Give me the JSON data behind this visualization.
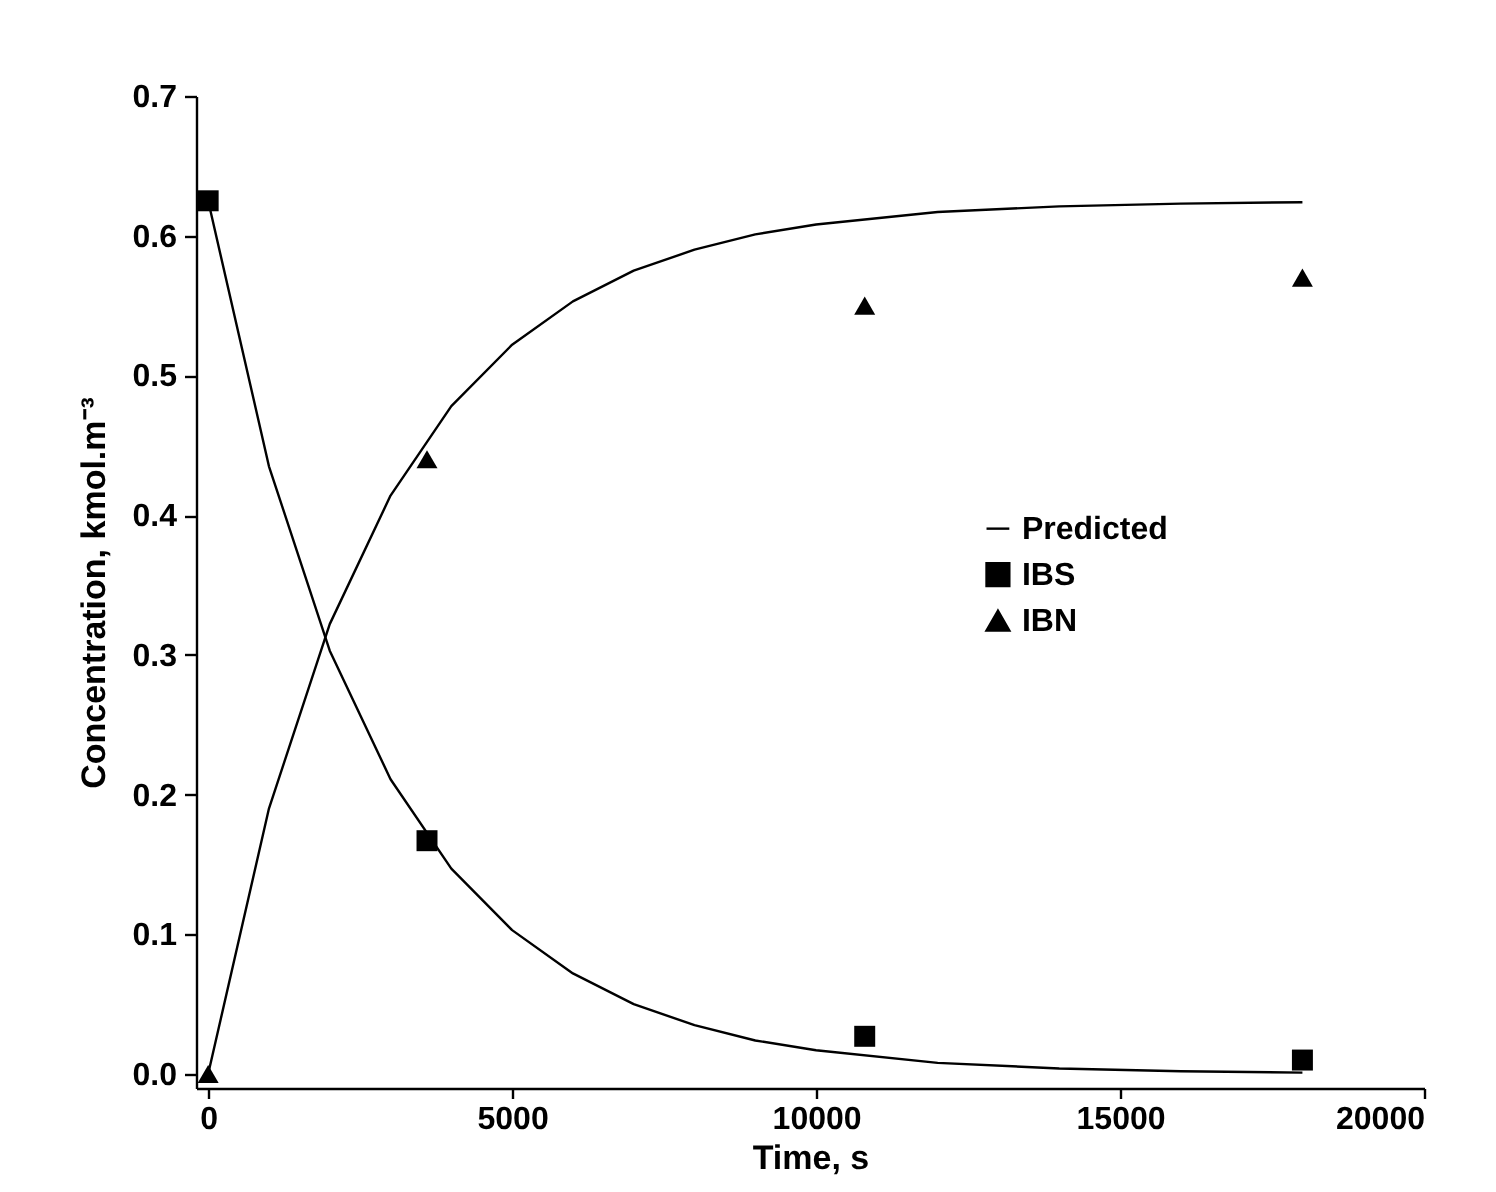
{
  "chart_data": {
    "type": "scatter",
    "xlabel": "Time, s",
    "ylabel": "Concentration, kmol.m⁻³",
    "xlim": [
      -200,
      20000
    ],
    "xticks": [
      0,
      5000,
      10000,
      15000,
      20000
    ],
    "ylim": [
      -0.01,
      0.7
    ],
    "yticks": [
      {
        "value": 0,
        "label": "0.0"
      },
      {
        "value": 0.1,
        "label": "0.1"
      },
      {
        "value": 0.2,
        "label": "0.2"
      },
      {
        "value": 0.3,
        "label": "0.3"
      },
      {
        "value": 0.4,
        "label": "0.4"
      },
      {
        "value": 0.5,
        "label": "0.5"
      },
      {
        "value": 0.6,
        "label": "0.6"
      },
      {
        "value": 0.7,
        "label": "0.7"
      }
    ],
    "legend": "right",
    "grid": false,
    "series": [
      {
        "name": "Predicted",
        "type": "line",
        "color": "#000000",
        "x": [
          0,
          1000,
          2000,
          3000,
          4000,
          5000,
          6000,
          7000,
          8000,
          9000,
          10000,
          12000,
          14000,
          16000,
          18000
        ],
        "values": [
          0.625,
          0.435,
          0.303,
          0.211,
          0.147,
          0.103,
          0.072,
          0.05,
          0.035,
          0.024,
          0.017,
          0.008,
          0.004,
          0.002,
          0.001
        ]
      },
      {
        "type": "line",
        "color": "#000000",
        "x": [
          0,
          1000,
          2000,
          3000,
          4000,
          5000,
          6000,
          7000,
          8000,
          9000,
          10000,
          12000,
          14000,
          16000,
          18000
        ],
        "values": [
          0,
          0.19,
          0.322,
          0.414,
          0.478,
          0.522,
          0.553,
          0.575,
          0.59,
          0.601,
          0.608,
          0.617,
          0.621,
          0.623,
          0.624
        ]
      },
      {
        "name": "IBS",
        "color": "#000000",
        "marker": "square",
        "x": [
          0,
          3600,
          10800,
          18000
        ],
        "values": [
          0.625,
          0.167,
          0.027,
          0.01
        ]
      },
      {
        "name": "IBN",
        "color": "#000000",
        "marker": "triangle",
        "x": [
          0,
          3600,
          10800,
          18000
        ],
        "values": [
          0,
          0.44,
          0.55,
          0.57
        ]
      }
    ]
  }
}
